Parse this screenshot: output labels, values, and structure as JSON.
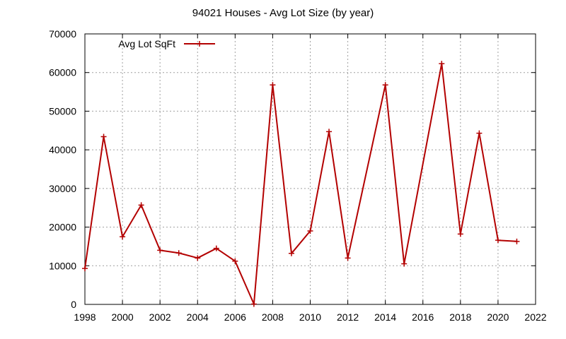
{
  "chart_data": {
    "type": "line",
    "title": "94021 Houses - Avg Lot Size (by year)",
    "xlabel": "",
    "ylabel": "",
    "xlim": [
      1998,
      2022
    ],
    "ylim": [
      0,
      70000
    ],
    "xticks": [
      1998,
      2000,
      2002,
      2004,
      2006,
      2008,
      2010,
      2012,
      2014,
      2016,
      2018,
      2020,
      2022
    ],
    "yticks": [
      0,
      10000,
      20000,
      30000,
      40000,
      50000,
      60000,
      70000
    ],
    "grid": true,
    "legend_position": "top-left",
    "series": [
      {
        "name": "Avg Lot SqFt",
        "color": "#b30000",
        "marker": "plus",
        "x": [
          1998,
          1999,
          2000,
          2001,
          2002,
          2003,
          2004,
          2005,
          2006,
          2007,
          2008,
          2009,
          2010,
          2011,
          2012,
          2014,
          2015,
          2017,
          2018,
          2019,
          2020,
          2021
        ],
        "y": [
          9300,
          43400,
          17500,
          25700,
          14000,
          13300,
          12000,
          14500,
          11200,
          100,
          56800,
          13200,
          19000,
          44700,
          12000,
          56800,
          10500,
          62300,
          18200,
          44300,
          16600,
          16300
        ]
      }
    ]
  }
}
